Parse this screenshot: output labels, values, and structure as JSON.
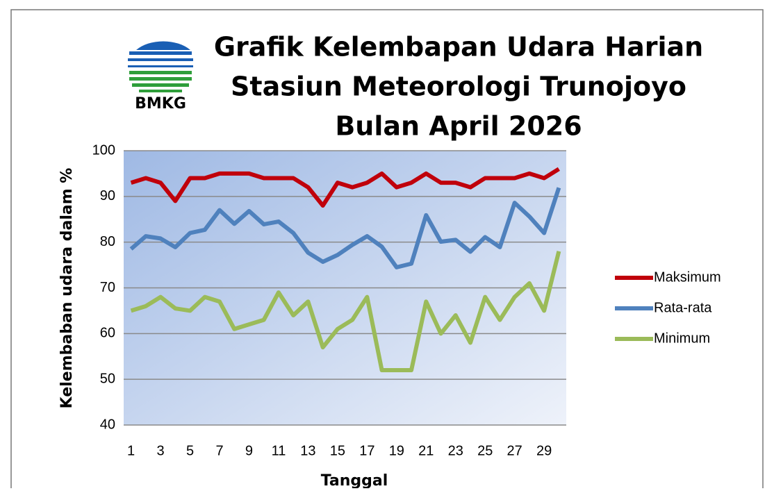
{
  "chart_data": {
    "type": "line",
    "logo_text": "BMKG",
    "title": [
      "Grafik Kelembapan Udara Harian",
      "Stasiun Meteorologi Trunojoyo",
      "Bulan April 2026"
    ],
    "y_label": "Kelembaban udara dalam %",
    "x_label": "Tanggal",
    "categories": [
      "1",
      null,
      "3",
      null,
      "5",
      null,
      "7",
      null,
      "9",
      null,
      "11",
      null,
      "13",
      null,
      "15",
      null,
      "17",
      null,
      "19",
      null,
      "21",
      null,
      "23",
      null,
      "25",
      null,
      "27",
      null,
      "29",
      null
    ],
    "series": [
      {
        "name": "Maksimum",
        "color": "#c0000b",
        "values": [
          93,
          94,
          93,
          89,
          94,
          94,
          95,
          95,
          95,
          94,
          94,
          94,
          92,
          88,
          93,
          92,
          93,
          95,
          92,
          93,
          95,
          93,
          93,
          92,
          94,
          94,
          94,
          95,
          94,
          96
        ]
      },
      {
        "name": "Rata-rata",
        "color": "#4f81bd",
        "values": [
          78.5,
          81.3,
          80.8,
          78.9,
          82,
          82.7,
          87,
          84,
          86.8,
          83.9,
          84.5,
          82,
          77.7,
          75.7,
          77.2,
          79.4,
          81.3,
          79,
          74.5,
          75.3,
          85.9,
          80.1,
          80.5,
          77.9,
          81.1,
          78.9,
          88.6,
          85.6,
          82,
          91.9
        ]
      },
      {
        "name": "Minimum",
        "color": "#9bbb59",
        "values": [
          65,
          66,
          68,
          65.5,
          65,
          68,
          67,
          61,
          62,
          63,
          69,
          64,
          67,
          57,
          61,
          63,
          68,
          52,
          52,
          52,
          67,
          60,
          64,
          58,
          68,
          63,
          68,
          71,
          65,
          78
        ]
      }
    ],
    "ylim": [
      40,
      100
    ],
    "yticks": [
      40,
      50,
      60,
      70,
      80,
      90,
      100
    ],
    "grid": true,
    "legend": "right"
  }
}
